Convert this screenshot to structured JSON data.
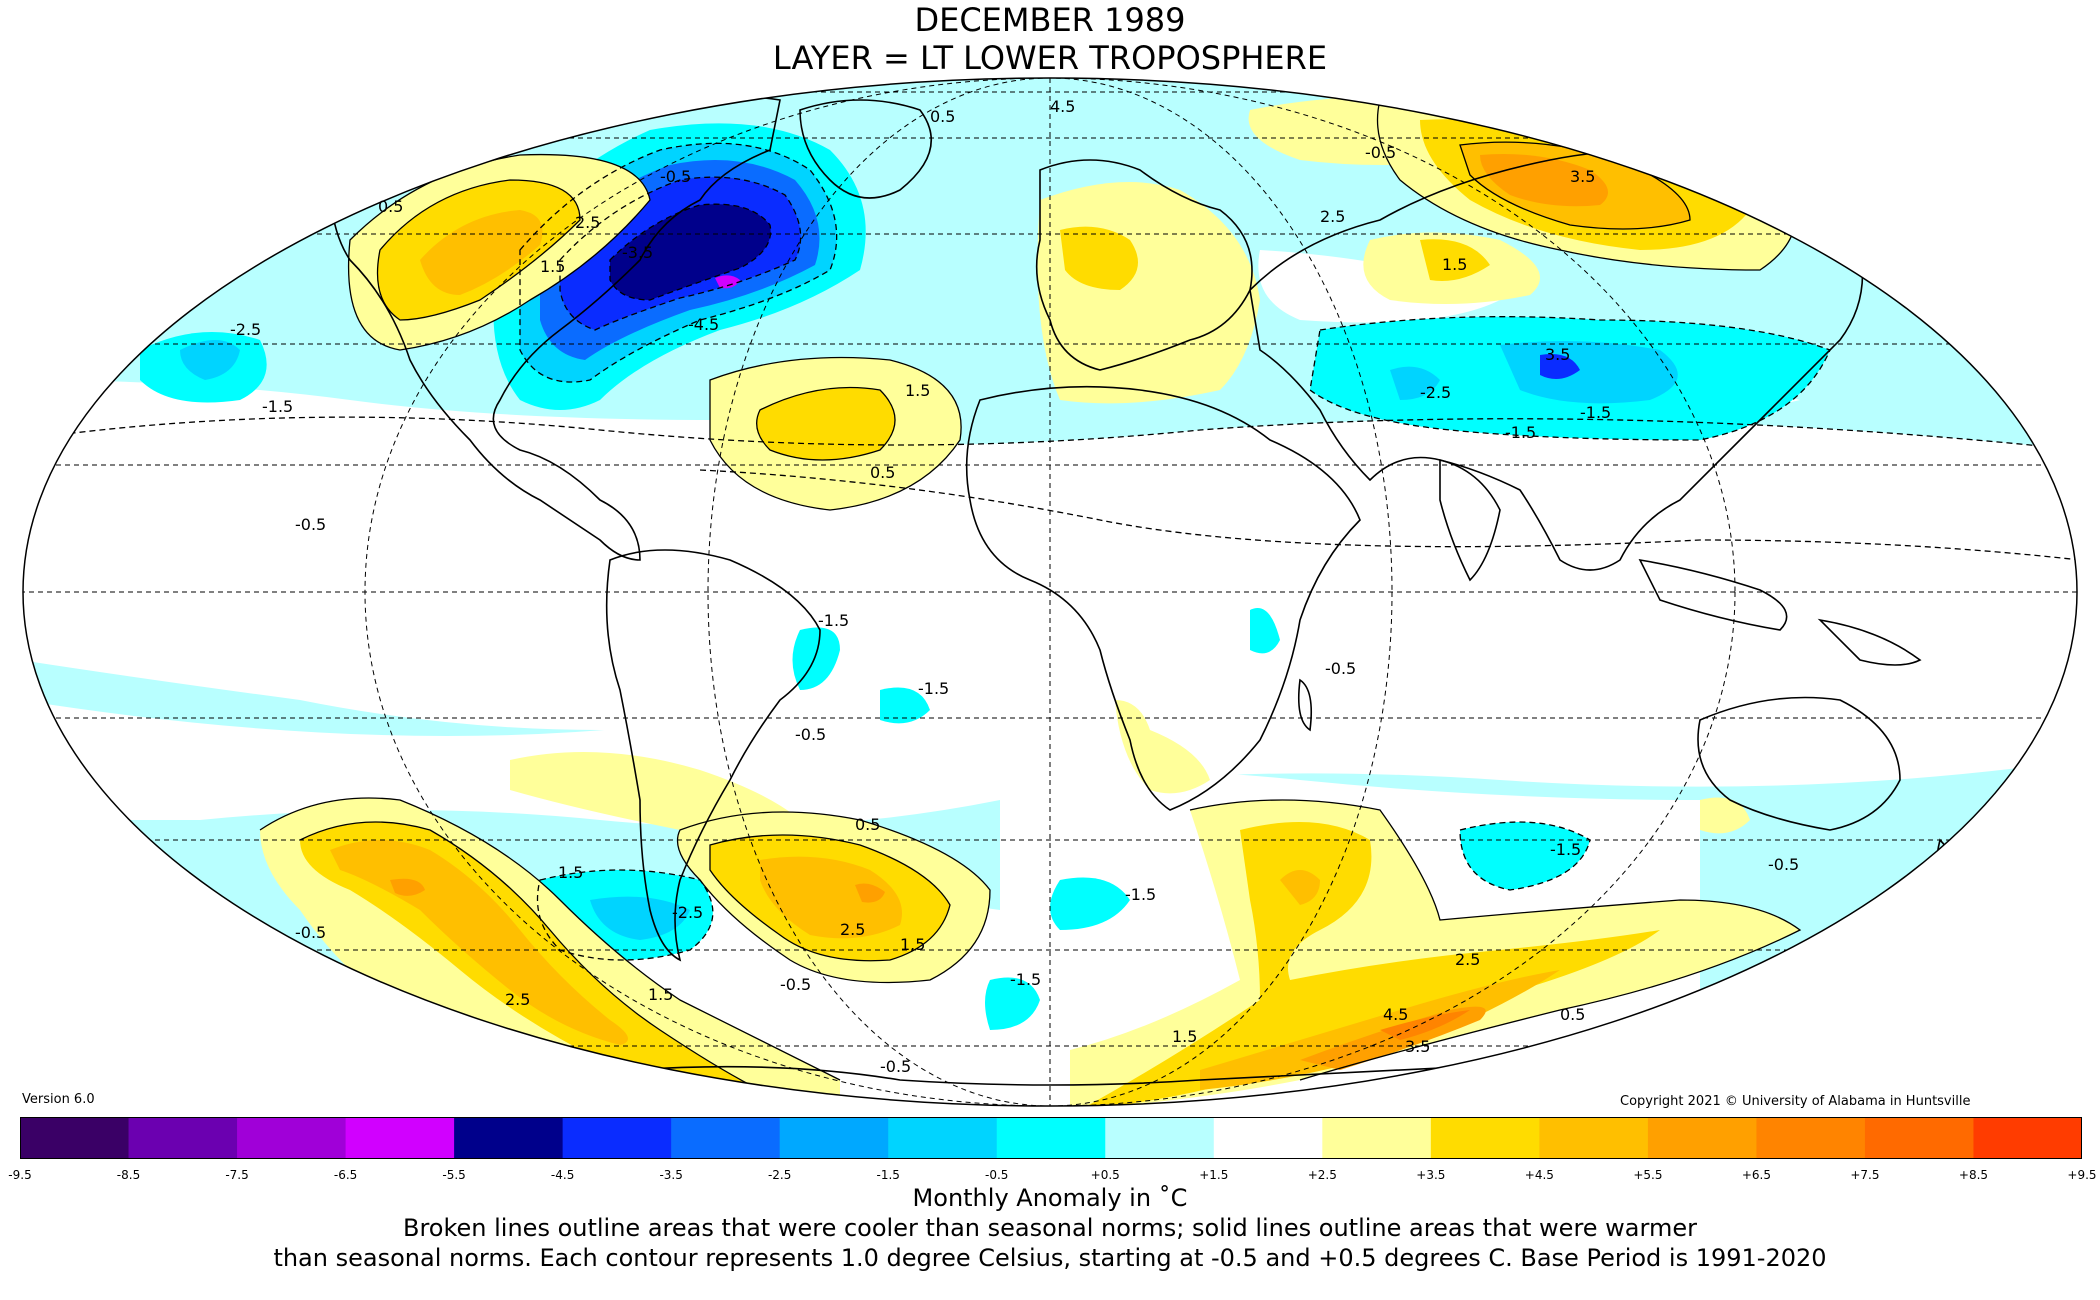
{
  "title_line1": "DECEMBER 1989",
  "title_line2": "LAYER = LT LOWER TROPOSPHERE",
  "version": "Version 6.0",
  "copyright": "Copyright 2021 © University of Alabama in Huntsville",
  "colorbar": {
    "ticks": [
      "-9.5",
      "-8.5",
      "-7.5",
      "-6.5",
      "-5.5",
      "-4.5",
      "-3.5",
      "-2.5",
      "-1.5",
      "-0.5",
      "+0.5",
      "+1.5",
      "+2.5",
      "+3.5",
      "+4.5",
      "+5.5",
      "+6.5",
      "+7.5",
      "+8.5",
      "+9.5"
    ],
    "colors": [
      "#3a0066",
      "#6b00b0",
      "#a000d8",
      "#d100ff",
      "#00008b",
      "#0a2cff",
      "#0a6cff",
      "#00a8ff",
      "#00d4ff",
      "#00ffff",
      "#b8ffff",
      "#ffffff",
      "#ffff9a",
      "#ffdc00",
      "#ffbf00",
      "#ffa000",
      "#ff8400",
      "#ff6a00",
      "#ff3c00",
      "#ff0000",
      "#e40000",
      "#bb0000"
    ]
  },
  "legend_title": "Monthly Anomaly in ˚C",
  "caption_line1": "Broken lines outline areas that were cooler than seasonal norms; solid lines outline areas that were warmer",
  "caption_line2": "than seasonal norms. Each contour represents 1.0 degree Celsius, starting at -0.5 and +0.5 degrees C. Base Period is 1991-2020",
  "contour_labels": [
    "0.5",
    "-0.5",
    "-1.5",
    "-2.5",
    "-3.5",
    "-4.5",
    "1.5",
    "2.5",
    "3.5",
    "4.5",
    "-0.5",
    "0.5",
    "-1.5",
    "1.5",
    "2.5",
    "3.5",
    "-2.5",
    "-1.5",
    "0.5",
    "-0.5",
    "-1.5",
    "1.5",
    "-0.5",
    "-1.5",
    "-0.5",
    "-1.5",
    "-0.5",
    "1.5",
    "2.5",
    "1.5",
    "-0.5",
    "0.5",
    "2.5",
    "4.5",
    "3.5",
    "1.5",
    "0.5",
    "-1.5",
    "-2.5",
    "1.5",
    "2.5",
    "-0.5",
    "-1.5",
    "-0.5"
  ]
}
